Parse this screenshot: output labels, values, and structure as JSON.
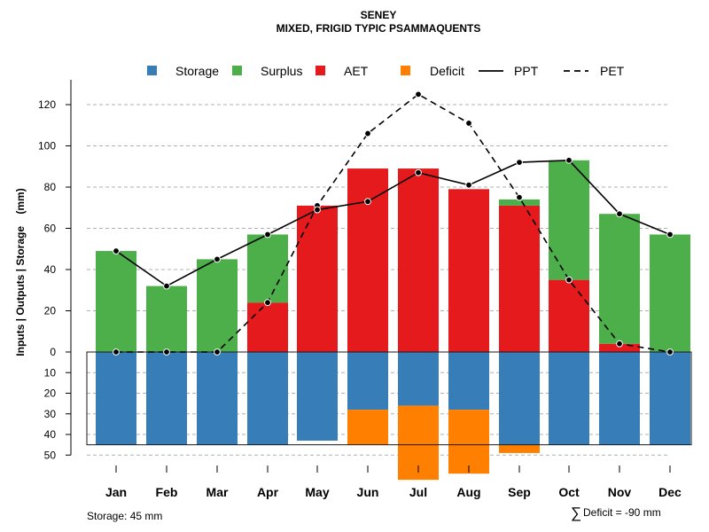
{
  "chart_data": {
    "type": "bar",
    "title": "SENEY",
    "subtitle": "MIXED, FRIGID TYPIC PSAMMAQUENTS",
    "ylabel": "Inputs | Outputs | Storage    (mm)",
    "ylim": [
      -50,
      125
    ],
    "yticks_positive": [
      0,
      20,
      40,
      60,
      80,
      100,
      120
    ],
    "yticks_negative": [
      10,
      20,
      30,
      40,
      50
    ],
    "grid": true,
    "categories": [
      "Jan",
      "Feb",
      "Mar",
      "Apr",
      "May",
      "Jun",
      "Jul",
      "Aug",
      "Sep",
      "Oct",
      "Nov",
      "Dec"
    ],
    "legend": [
      {
        "key": "storage",
        "label": "Storage",
        "kind": "swatch"
      },
      {
        "key": "surplus",
        "label": "Surplus",
        "kind": "swatch"
      },
      {
        "key": "aet",
        "label": "AET",
        "kind": "swatch"
      },
      {
        "key": "deficit",
        "label": "Deficit",
        "kind": "swatch"
      },
      {
        "key": "ppt",
        "label": "PPT",
        "kind": "solid-line"
      },
      {
        "key": "pet",
        "label": "PET",
        "kind": "dashed-line"
      }
    ],
    "colors": {
      "storage": "#377EB8",
      "surplus": "#4DAF4A",
      "aet": "#E41A1C",
      "deficit": "#FF7F00",
      "grid": "#b0b0b0",
      "line": "#000000"
    },
    "series": [
      {
        "key": "aet",
        "name": "AET",
        "values": [
          0,
          0,
          0,
          24,
          71,
          89,
          89,
          79,
          71,
          35,
          4,
          0
        ]
      },
      {
        "key": "surplus",
        "name": "Surplus",
        "values": [
          49,
          32,
          45,
          33,
          0,
          0,
          0,
          0,
          3,
          58,
          63,
          57
        ]
      },
      {
        "key": "storage",
        "name": "Storage",
        "values": [
          45,
          45,
          45,
          45,
          43,
          28,
          26,
          28,
          45,
          45,
          45,
          45
        ]
      },
      {
        "key": "deficit",
        "name": "Deficit",
        "values": [
          0,
          0,
          0,
          0,
          0,
          17,
          36,
          31,
          4,
          0,
          0,
          0
        ]
      },
      {
        "key": "ppt",
        "name": "PPT",
        "values": [
          49,
          32,
          45,
          57,
          69,
          73,
          87,
          81,
          92,
          93,
          67,
          57
        ]
      },
      {
        "key": "pet",
        "name": "PET",
        "values": [
          0,
          0,
          0,
          24,
          71,
          106,
          125,
          111,
          75,
          35,
          4,
          0
        ]
      }
    ],
    "storage_capacity": 45,
    "footer_storage": "Storage: 45 mm",
    "footer_deficit_symbol": "∑",
    "footer_deficit": "Deficit = -90 mm"
  }
}
